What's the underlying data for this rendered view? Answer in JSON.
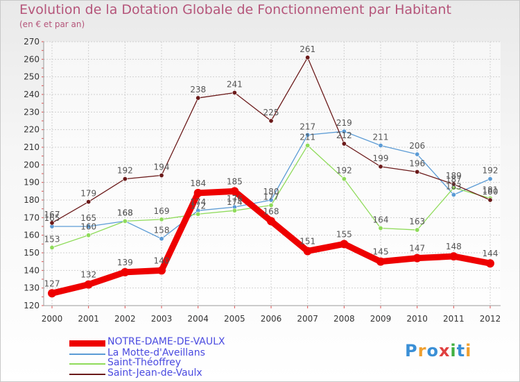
{
  "chart_data": {
    "type": "line",
    "title": "Evolution de la Dotation Globale de Fonctionnement par Habitant",
    "subtitle": "(en € et par an)",
    "x": [
      "2000",
      "2001",
      "2002",
      "2003",
      "2004",
      "2005",
      "2006",
      "2007",
      "2008",
      "2009",
      "2010",
      "2011",
      "2012"
    ],
    "ylim": [
      120,
      270
    ],
    "yticks": [
      "120",
      "130",
      "140",
      "150",
      "160",
      "170",
      "180",
      "190",
      "200",
      "210",
      "220",
      "230",
      "240",
      "250",
      "260",
      "270"
    ],
    "grid": true,
    "legend_position": "bottom-left",
    "series": [
      {
        "name": "NOTRE-DAME-DE-VAULX",
        "color": "#ee0000",
        "values": [
          127,
          132,
          139,
          140,
          184,
          185,
          168,
          151,
          155,
          145,
          147,
          148,
          144
        ]
      },
      {
        "name": "La Motte-d'Aveillans",
        "color": "#5b9bd5",
        "values": [
          165,
          165,
          168,
          158,
          174,
          176,
          180,
          217,
          219,
          211,
          206,
          183,
          192
        ]
      },
      {
        "name": "Saint-Théoffrey",
        "color": "#8fdb5a",
        "values": [
          153,
          160,
          168,
          169,
          172,
          174,
          177,
          211,
          192,
          164,
          163,
          187,
          181
        ]
      },
      {
        "name": "Saint-Jean-de-Vaulx",
        "color": "#6b1a1a",
        "values": [
          167,
          179,
          192,
          194,
          238,
          241,
          225,
          261,
          212,
          199,
          196,
          189,
          180
        ]
      }
    ]
  },
  "logo": {
    "letters": [
      "P",
      "r",
      "o",
      "x",
      "i",
      "t",
      "i"
    ],
    "colors": [
      "#3a8fd6",
      "#f0a030",
      "#3a8fd6",
      "#e04040",
      "#40b040",
      "#3a8fd6",
      "#f0a030"
    ]
  }
}
